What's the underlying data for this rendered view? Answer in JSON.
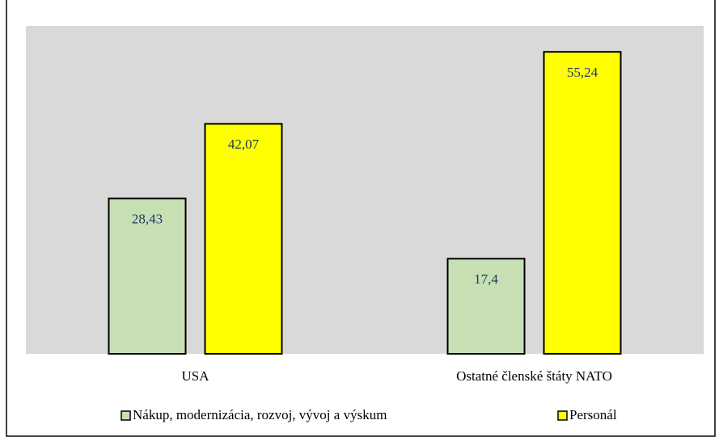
{
  "chart_data": {
    "type": "bar",
    "categories": [
      "USA",
      "Ostatné členské štáty NATO"
    ],
    "series": [
      {
        "name": "Nákup, modernizácia, rozvoj, vývoj a výskum",
        "color": "#c6e0b4",
        "values": [
          28.43,
          17.4
        ],
        "value_labels": [
          "28,43",
          "17,4"
        ]
      },
      {
        "name": "Personál",
        "color": "#ffff00",
        "values": [
          42.07,
          55.24
        ],
        "value_labels": [
          "42,07",
          "55,24"
        ]
      }
    ],
    "ylim": [
      0,
      60
    ],
    "legend": "bottom"
  }
}
